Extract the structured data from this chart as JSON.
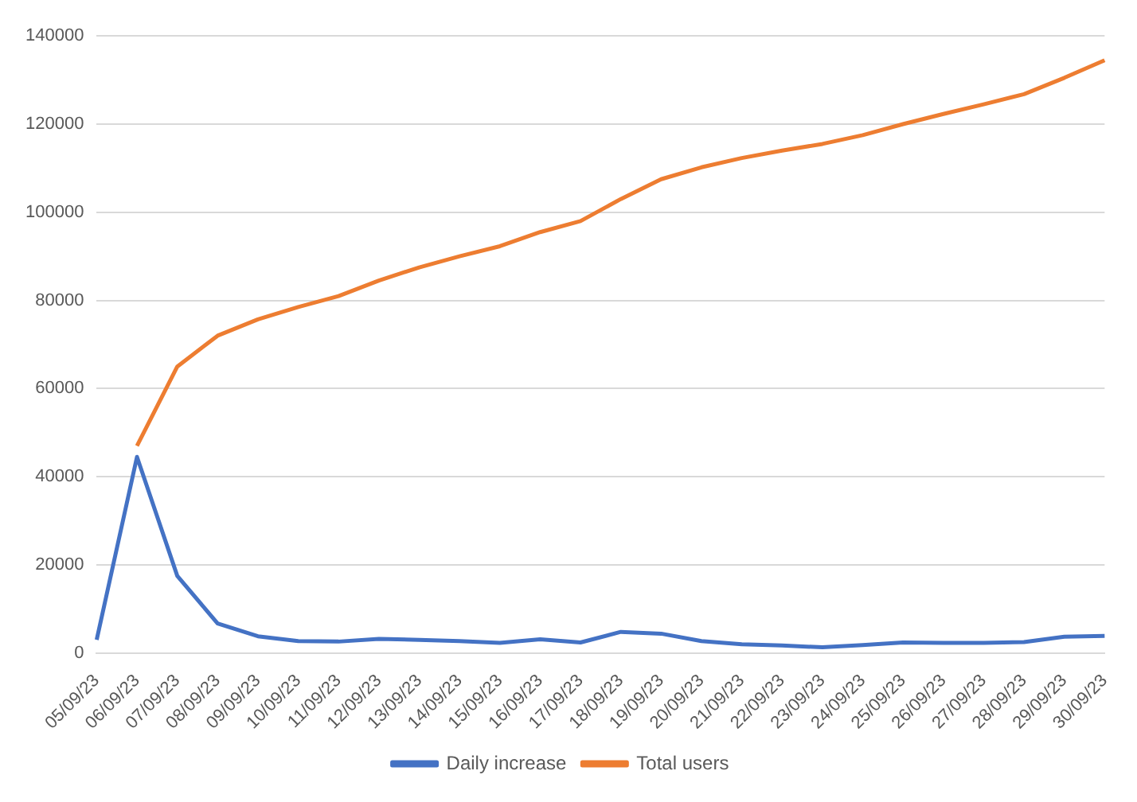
{
  "chart_data": {
    "type": "line",
    "categories": [
      "05/09/23",
      "06/09/23",
      "07/09/23",
      "08/09/23",
      "09/09/23",
      "10/09/23",
      "11/09/23",
      "12/09/23",
      "13/09/23",
      "14/09/23",
      "15/09/23",
      "16/09/23",
      "17/09/23",
      "18/09/23",
      "19/09/23",
      "20/09/23",
      "21/09/23",
      "22/09/23",
      "23/09/23",
      "24/09/23",
      "25/09/23",
      "26/09/23",
      "27/09/23",
      "28/09/23",
      "29/09/23",
      "30/09/23"
    ],
    "series": [
      {
        "name": "Daily increase",
        "color": "#4472c4",
        "values": [
          3000,
          44500,
          17500,
          6700,
          3800,
          2700,
          2600,
          3200,
          3000,
          2700,
          2300,
          3100,
          2400,
          4800,
          4400,
          2700,
          2000,
          1700,
          1300,
          1800,
          2400,
          2300,
          2300,
          2500,
          3700,
          3900
        ]
      },
      {
        "name": "Total users",
        "color": "#ed7d31",
        "values": [
          null,
          47000,
          65000,
          72000,
          75700,
          78500,
          81000,
          84500,
          87500,
          90000,
          92300,
          95500,
          98000,
          103000,
          107500,
          110200,
          112300,
          114000,
          115500,
          117500,
          120000,
          122300,
          124500,
          126800,
          130500,
          134500
        ]
      }
    ],
    "ylim": [
      0,
      140000
    ],
    "yticks": [
      0,
      20000,
      40000,
      60000,
      80000,
      100000,
      120000,
      140000
    ],
    "grid": "y",
    "legend": "bottom",
    "marker": "none",
    "line_style": "solid"
  }
}
